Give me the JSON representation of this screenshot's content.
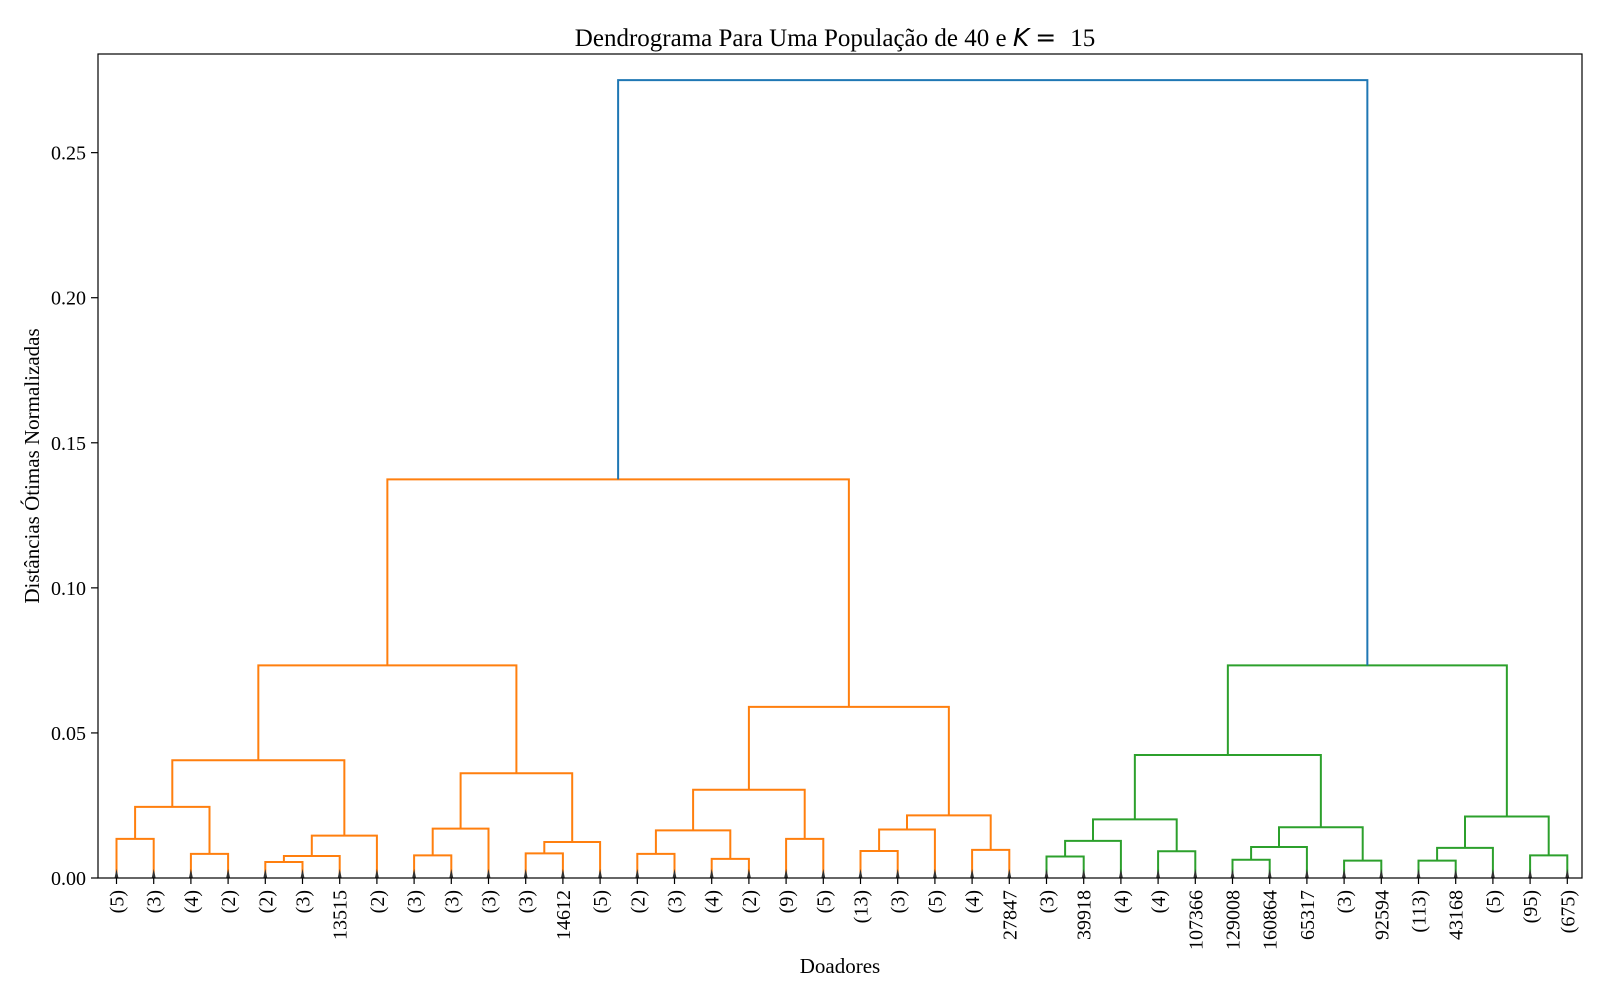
{
  "chart_data": {
    "type": "dendrogram",
    "title": "Dendrograma Para Uma População de 40 e K = 15",
    "title_main": "Dendrograma Para Uma População de 40 e ",
    "title_k": "K",
    "title_eq": "=",
    "title_value": "15",
    "xlabel": "Doadores",
    "ylabel": "Distâncias Ótimas Normalizadas",
    "ylim": [
      0,
      0.284
    ],
    "yticks": [
      0.0,
      0.05,
      0.1,
      0.15,
      0.2,
      0.25
    ],
    "ytick_labels": [
      "0.00",
      "0.05",
      "0.10",
      "0.15",
      "0.20",
      "0.25"
    ],
    "grid": false,
    "colors": {
      "orange": "#ff7f0e",
      "green": "#2ca02c",
      "blue": "#1f77b4",
      "axis": "#000000"
    },
    "leaves": [
      "(5)",
      "(3)",
      "(4)",
      "(2)",
      "(2)",
      "(3)",
      "13515",
      "(2)",
      "(3)",
      "(3)",
      "(3)",
      "(3)",
      "14612",
      "(5)",
      "(2)",
      "(3)",
      "(4)",
      "(2)",
      "(9)",
      "(5)",
      "(13)",
      "(3)",
      "(5)",
      "(4)",
      "27847",
      "(3)",
      "39918",
      "(4)",
      "(4)",
      "107366",
      "129008",
      "160864",
      "65317",
      "(3)",
      "92594",
      "(113)",
      "43168",
      "(5)",
      "(95)",
      "(675)"
    ],
    "links": [
      {
        "a": 0,
        "b": 1,
        "h": 0.0135,
        "c": "orange"
      },
      {
        "a": 2,
        "b": 3,
        "h": 0.0083,
        "c": "orange"
      },
      {
        "a": 40,
        "b": 41,
        "h": 0.0245,
        "c": "orange"
      },
      {
        "a": 4,
        "b": 5,
        "h": 0.0055,
        "c": "orange"
      },
      {
        "a": 43,
        "b": 6,
        "h": 0.0076,
        "c": "orange"
      },
      {
        "a": 44,
        "b": 7,
        "h": 0.0146,
        "c": "orange"
      },
      {
        "a": 42,
        "b": 45,
        "h": 0.0406,
        "c": "orange"
      },
      {
        "a": 8,
        "b": 9,
        "h": 0.0078,
        "c": "orange"
      },
      {
        "a": 47,
        "b": 10,
        "h": 0.017,
        "c": "orange"
      },
      {
        "a": 11,
        "b": 12,
        "h": 0.0085,
        "c": "orange"
      },
      {
        "a": 49,
        "b": 13,
        "h": 0.0124,
        "c": "orange"
      },
      {
        "a": 48,
        "b": 50,
        "h": 0.0361,
        "c": "orange"
      },
      {
        "a": 46,
        "b": 51,
        "h": 0.0733,
        "c": "orange"
      },
      {
        "a": 14,
        "b": 15,
        "h": 0.0083,
        "c": "orange"
      },
      {
        "a": 16,
        "b": 17,
        "h": 0.0066,
        "c": "orange"
      },
      {
        "a": 53,
        "b": 54,
        "h": 0.0164,
        "c": "orange"
      },
      {
        "a": 18,
        "b": 19,
        "h": 0.0135,
        "c": "orange"
      },
      {
        "a": 55,
        "b": 56,
        "h": 0.0304,
        "c": "orange"
      },
      {
        "a": 20,
        "b": 21,
        "h": 0.0093,
        "c": "orange"
      },
      {
        "a": 58,
        "b": 22,
        "h": 0.0167,
        "c": "orange"
      },
      {
        "a": 23,
        "b": 24,
        "h": 0.0097,
        "c": "orange"
      },
      {
        "a": 59,
        "b": 60,
        "h": 0.0216,
        "c": "orange"
      },
      {
        "a": 57,
        "b": 61,
        "h": 0.059,
        "c": "orange"
      },
      {
        "a": 52,
        "b": 62,
        "h": 0.1374,
        "c": "orange"
      },
      {
        "a": 25,
        "b": 26,
        "h": 0.0074,
        "c": "green"
      },
      {
        "a": 64,
        "b": 27,
        "h": 0.0128,
        "c": "green"
      },
      {
        "a": 28,
        "b": 29,
        "h": 0.0092,
        "c": "green"
      },
      {
        "a": 65,
        "b": 66,
        "h": 0.0202,
        "c": "green"
      },
      {
        "a": 30,
        "b": 31,
        "h": 0.0063,
        "c": "green"
      },
      {
        "a": 68,
        "b": 32,
        "h": 0.0107,
        "c": "green"
      },
      {
        "a": 33,
        "b": 34,
        "h": 0.006,
        "c": "green"
      },
      {
        "a": 69,
        "b": 70,
        "h": 0.0175,
        "c": "green"
      },
      {
        "a": 67,
        "b": 71,
        "h": 0.0424,
        "c": "green"
      },
      {
        "a": 35,
        "b": 36,
        "h": 0.006,
        "c": "green"
      },
      {
        "a": 73,
        "b": 37,
        "h": 0.0104,
        "c": "green"
      },
      {
        "a": 38,
        "b": 39,
        "h": 0.0078,
        "c": "green"
      },
      {
        "a": 74,
        "b": 75,
        "h": 0.0212,
        "c": "green"
      },
      {
        "a": 72,
        "b": 76,
        "h": 0.0733,
        "c": "green"
      },
      {
        "a": 63,
        "b": 77,
        "h": 0.275,
        "c": "blue"
      }
    ]
  }
}
